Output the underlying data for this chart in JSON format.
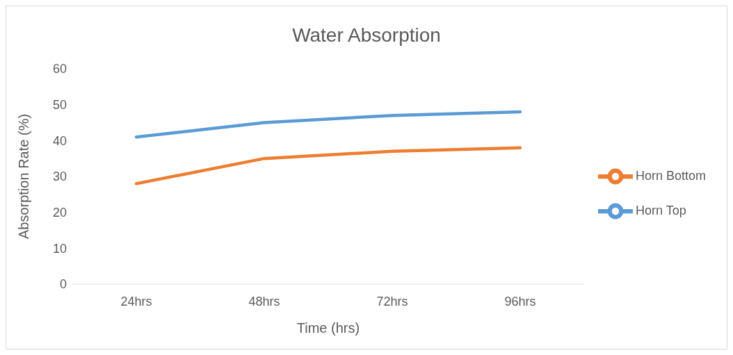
{
  "chart_data": {
    "type": "line",
    "title": "Water Absorption",
    "xlabel": "Time (hrs)",
    "ylabel": "Absorption Rate (%)",
    "categories": [
      "24hrs",
      "48hrs",
      "72hrs",
      "96hrs"
    ],
    "series": [
      {
        "name": "Horn Top",
        "color": "#5b9bd5",
        "values": [
          41,
          45,
          47,
          48
        ]
      },
      {
        "name": "Horn Bottom",
        "color": "#ed7d31",
        "values": [
          28,
          35,
          37,
          38
        ]
      }
    ],
    "ylim": [
      0,
      60
    ],
    "yticks": [
      0,
      10,
      20,
      30,
      40,
      50,
      60
    ],
    "legend": "right",
    "marker": "none",
    "line_style": "solid"
  }
}
